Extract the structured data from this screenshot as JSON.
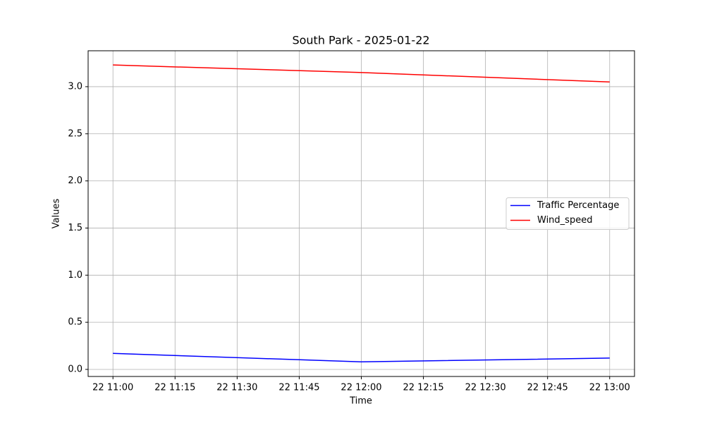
{
  "chart_data": {
    "type": "line",
    "title": "South Park - 2025-01-22",
    "xlabel": "Time",
    "ylabel": "Values",
    "x": [
      "22 11:00",
      "22 12:00",
      "22 13:00"
    ],
    "series": [
      {
        "name": "Traffic Percentage",
        "color": "#0000ff",
        "values": [
          0.17,
          0.08,
          0.12
        ]
      },
      {
        "name": "Wind_speed",
        "color": "#ff0000",
        "values": [
          3.23,
          3.15,
          3.05
        ]
      }
    ],
    "xlim": [
      "22 10:54",
      "22 13:06"
    ],
    "xticks": [
      "22 11:00",
      "22 11:15",
      "22 11:30",
      "22 11:45",
      "22 12:00",
      "22 12:15",
      "22 12:30",
      "22 12:45",
      "22 13:00"
    ],
    "ylim": [
      -0.075,
      3.381
    ],
    "yticks": [
      {
        "value": 0,
        "label": "0.0"
      },
      0.5,
      {
        "value": 1,
        "label": "1.0"
      },
      1.5,
      {
        "value": 2,
        "label": "2.0"
      },
      2.5,
      {
        "value": 3,
        "label": "3.0"
      }
    ],
    "grid": true,
    "legend": "center right"
  }
}
